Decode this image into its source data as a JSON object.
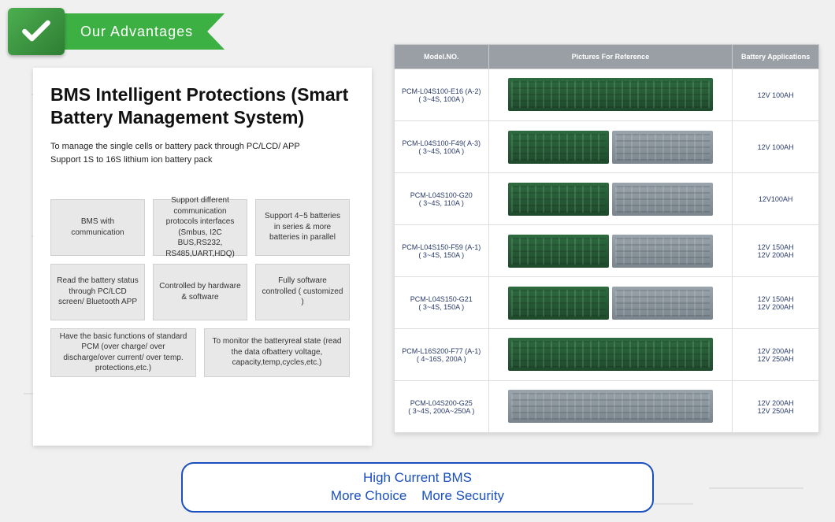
{
  "ribbon": {
    "label": "Our Advantages"
  },
  "left": {
    "title": "BMS Intelligent Protections (Smart Battery Management System)",
    "sub1": "To manage the single cells or battery pack through PC/LCD/ APP",
    "sub2": "Support 1S to 16S lithium ion battery pack",
    "features": [
      "BMS with communication",
      "Support different communication protocols interfaces (Smbus, I2C BUS,RS232, RS485,UART,HDQ)",
      "Support 4~5 batteries in series & more batteries in parallel",
      "Read the battery status through PC/LCD screen/ Bluetooth APP",
      "Controlled by hardware & software",
      "Fully software controlled ( customized )",
      "Have the basic functions of standard PCM (over charge/ over discharge/over current/ over temp. protections,etc.)",
      "To monitor the batteryreal state (read the data ofbattery voltage, capacity,temp,cycles,etc.)"
    ]
  },
  "table": {
    "headers": [
      "Model.NO.",
      "Pictures For Reference",
      "Battery Applications"
    ],
    "rows": [
      {
        "model": "PCM-L04S100-E16 (A-2)",
        "spec": "( 3~4S, 100A )",
        "pcb": "green",
        "app": [
          "12V 100AH"
        ]
      },
      {
        "model": "PCM-L04S100-F49( A-3)",
        "spec": "( 3~4S, 100A )",
        "pcb": "pair-gg",
        "app": [
          "12V 100AH"
        ]
      },
      {
        "model": "PCM-L04S100-G20",
        "spec": "( 3~4S, 110A )",
        "pcb": "pair-gr",
        "app": [
          "12V100AH"
        ]
      },
      {
        "model": "PCM-L04S150-F59 (A-1)",
        "spec": "( 3~4S, 150A )",
        "pcb": "pair-gr",
        "app": [
          "12V 150AH",
          "12V 200AH"
        ]
      },
      {
        "model": "PCM-L04S150-G21",
        "spec": "( 3~4S, 150A )",
        "pcb": "pair-gr",
        "app": [
          "12V 150AH",
          "12V 200AH"
        ]
      },
      {
        "model": "PCM-L16S200-F77 (A-1)",
        "spec": "( 4~16S, 200A )",
        "pcb": "green",
        "app": [
          "12V 200AH",
          "12V 250AH"
        ]
      },
      {
        "model": "PCM-L04S200-G25",
        "spec": "( 3~4S, 200A~250A )",
        "pcb": "grey",
        "app": [
          "12V 200AH",
          "12V 250AH"
        ]
      }
    ]
  },
  "callout": {
    "line1": "High Current BMS",
    "line2": "More Choice    More Security"
  },
  "colors": {
    "ribbon_green": "#3cb043",
    "accent_blue": "#1a4fbf",
    "table_header": "#999fa5",
    "feature_box_bg": "#e8e8e8"
  }
}
